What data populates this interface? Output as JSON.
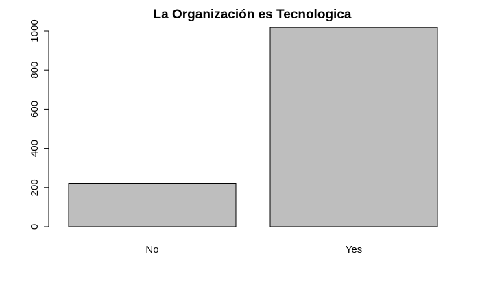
{
  "chart_data": {
    "type": "bar",
    "title": "La Organización es Tecnologica",
    "xlabel": "",
    "ylabel": "",
    "categories": [
      "No",
      "Yes"
    ],
    "values": [
      222,
      1017
    ],
    "ylim": [
      0,
      1000
    ],
    "yticks": [
      0,
      200,
      400,
      600,
      800,
      1000
    ],
    "ytick_labels": [
      "0",
      "200",
      "400",
      "600",
      "800",
      "1000"
    ],
    "grid": false,
    "legend": "none",
    "bar_color": "#bebebe",
    "bar_border_color": "#000000"
  }
}
